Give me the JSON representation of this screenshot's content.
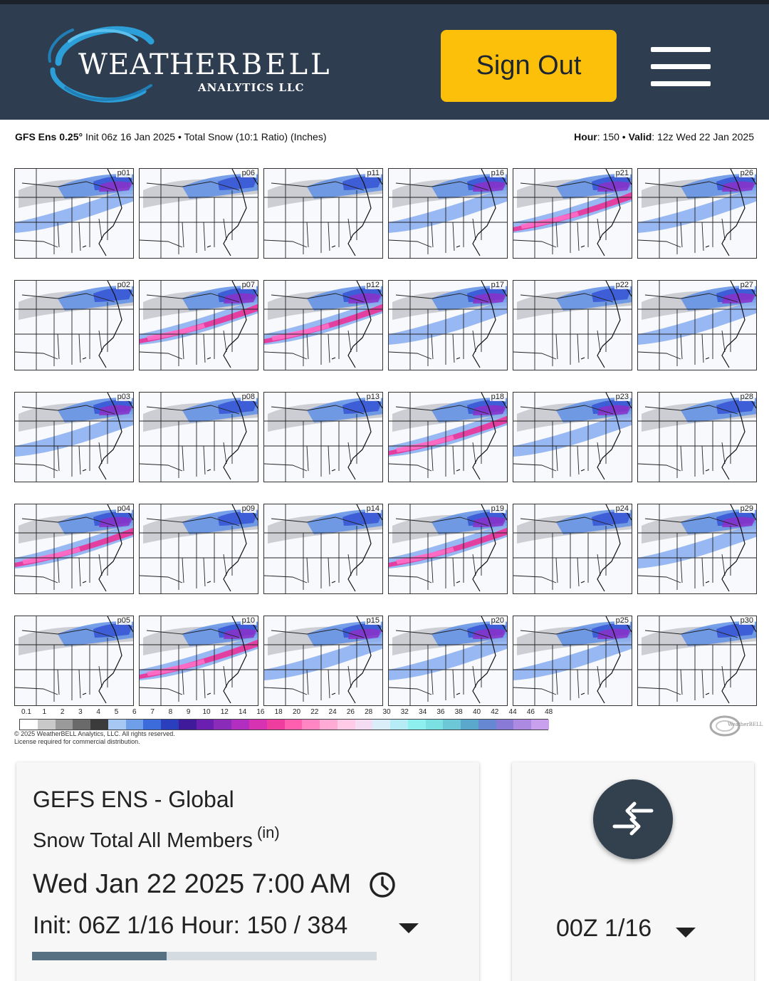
{
  "header": {
    "logo": {
      "brand_weather": "WEATHER",
      "brand_bell": "BELL",
      "brand_sub": "ANALYTICS LLC"
    },
    "sign_out_label": "Sign Out",
    "menu_icon": "hamburger-icon",
    "colors": {
      "bar": "#2e3e50",
      "sign_out": "#fdc00a"
    }
  },
  "map": {
    "model": "GFS Ens 0.25",
    "degree": "°",
    "init": "Init 06z 16 Jan 2025",
    "sep": "•",
    "product": "Total Snow (10:1 Ratio) (Inches)",
    "hour_label": "Hour",
    "hour_value": ": 150",
    "valid_label": "Valid",
    "valid_value": ": 12z Wed 22 Jan 2025",
    "panels": [
      "p01",
      "p06",
      "p11",
      "p16",
      "p21",
      "p26",
      "p02",
      "p07",
      "p12",
      "p17",
      "p22",
      "p27",
      "p03",
      "p08",
      "p13",
      "p18",
      "p23",
      "p28",
      "p04",
      "p09",
      "p14",
      "p19",
      "p24",
      "p29",
      "p05",
      "p10",
      "p15",
      "p20",
      "p25",
      "p30"
    ],
    "scale_ticks": [
      "0.1",
      "1",
      "2",
      "3",
      "4",
      "5",
      "6",
      "7",
      "8",
      "9",
      "10",
      "12",
      "14",
      "16",
      "18",
      "20",
      "22",
      "24",
      "26",
      "28",
      "30",
      "32",
      "34",
      "36",
      "38",
      "40",
      "42",
      "44",
      "46",
      "48"
    ],
    "copyright_line1": "© 2025 WeatherBELL Analytics, LLC. All rights reserved.",
    "copyright_line2": "License required for commercial distribution.",
    "watermark": "WeatherBELL"
  },
  "info_card": {
    "model_name": "GEFS ENS - Global",
    "product": "Snow Total All Members",
    "unit": "(in)",
    "valid_time": "Wed Jan 22 2025 7:00 AM",
    "clock_icon": "clock-icon",
    "init_hour": "Init: 06Z 1/16  Hour: 150 / 384",
    "progress_hour": 150,
    "progress_max": 384,
    "colors": {
      "progress_fill": "#577182",
      "progress_track": "#d4dbe1"
    }
  },
  "compare_card": {
    "swap_icon": "swap-arrows-icon",
    "run_label": "00Z 1/16",
    "caret_icon": "chevron-down-icon"
  }
}
